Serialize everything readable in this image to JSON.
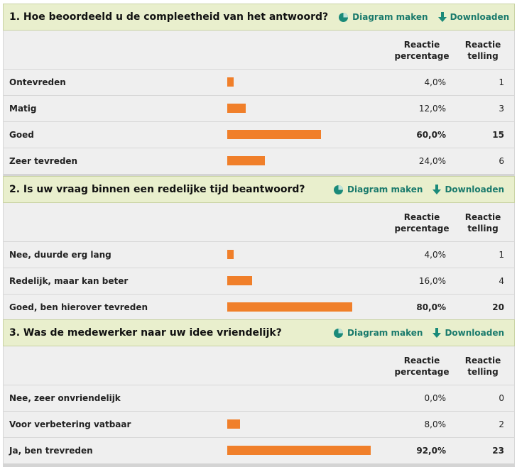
{
  "labels": {
    "chart_action": "Diagram maken",
    "download_action": "Downloaden",
    "pct_header": "Reactie percentage",
    "count_header": "Reactie telling"
  },
  "questions": [
    {
      "title": "1. Hoe beoordeeld u de compleetheid van het antwoord?",
      "rows": [
        {
          "label": "Ontevreden",
          "percentage": "4,0%",
          "count": "1",
          "value": 4.0,
          "top": false
        },
        {
          "label": "Matig",
          "percentage": "12,0%",
          "count": "3",
          "value": 12.0,
          "top": false
        },
        {
          "label": "Goed",
          "percentage": "60,0%",
          "count": "15",
          "value": 60.0,
          "top": true
        },
        {
          "label": "Zeer tevreden",
          "percentage": "24,0%",
          "count": "6",
          "value": 24.0,
          "top": false
        }
      ]
    },
    {
      "title": "2. Is uw vraag binnen een redelijke tijd beantwoord?",
      "rows": [
        {
          "label": "Nee, duurde erg lang",
          "percentage": "4,0%",
          "count": "1",
          "value": 4.0,
          "top": false
        },
        {
          "label": "Redelijk, maar kan beter",
          "percentage": "16,0%",
          "count": "4",
          "value": 16.0,
          "top": false
        },
        {
          "label": "Goed, ben hierover tevreden",
          "percentage": "80,0%",
          "count": "20",
          "value": 80.0,
          "top": true
        }
      ]
    },
    {
      "title": "3. Was de medewerker naar uw idee vriendelijk?",
      "rows": [
        {
          "label": "Nee, zeer onvriendelijk",
          "percentage": "0,0%",
          "count": "0",
          "value": 0.0,
          "top": false
        },
        {
          "label": "Voor verbetering vatbaar",
          "percentage": "8,0%",
          "count": "2",
          "value": 8.0,
          "top": false
        },
        {
          "label": "Ja, ben trevreden",
          "percentage": "92,0%",
          "count": "23",
          "value": 92.0,
          "top": true
        }
      ]
    }
  ],
  "colors": {
    "bar": "#f07f2a",
    "header_bg": "#e9efcd",
    "action_text": "#1a7a6c"
  },
  "icons": {
    "chart": "pie-chart-icon",
    "download": "download-arrow-icon"
  }
}
